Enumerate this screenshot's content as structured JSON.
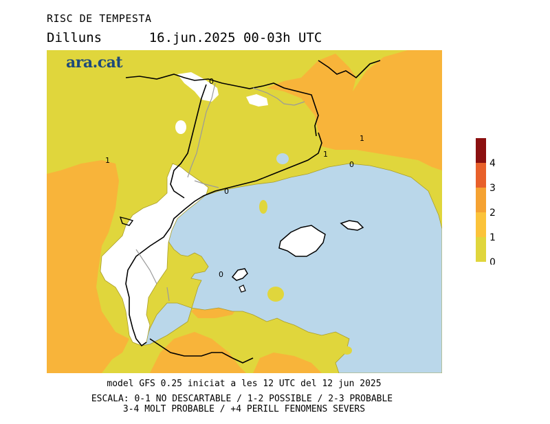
{
  "title": {
    "heading": "RISC DE TEMPESTA",
    "day": "Dilluns",
    "datetime": "16.jun.2025 00-03h UTC"
  },
  "logo": "ara.cat",
  "footer": {
    "model": "model GFS 0.25 iniciat a les 12 UTC del 12 jun 2025",
    "scale_line1": "ESCALA: 0-1 NO DESCARTABLE / 1-2 POSSIBLE / 2-3 PROBABLE",
    "scale_line2": "3-4 MOLT PROBABLE / +4 PERILL FENOMENS SEVERS"
  },
  "legend": {
    "levels": [
      {
        "label": "0",
        "color": "#e0d63c"
      },
      {
        "label": "1",
        "color": "#fbc33a"
      },
      {
        "label": "2",
        "color": "#f5a232"
      },
      {
        "label": "3",
        "color": "#e8602a"
      },
      {
        "label": "4",
        "color": "#8b1010"
      }
    ]
  },
  "colors": {
    "sea": "#bad7ea",
    "land_risk0_1": "#e0d63c",
    "land_risk1_2": "#f8b43a",
    "no_risk": "#ffffff"
  },
  "contour_labels": {
    "west": "1",
    "north_pyrenees": "0",
    "northeast_a": "1",
    "northeast_b": "1",
    "coast_east": "0",
    "coast_valencia": "0",
    "south": "0"
  }
}
